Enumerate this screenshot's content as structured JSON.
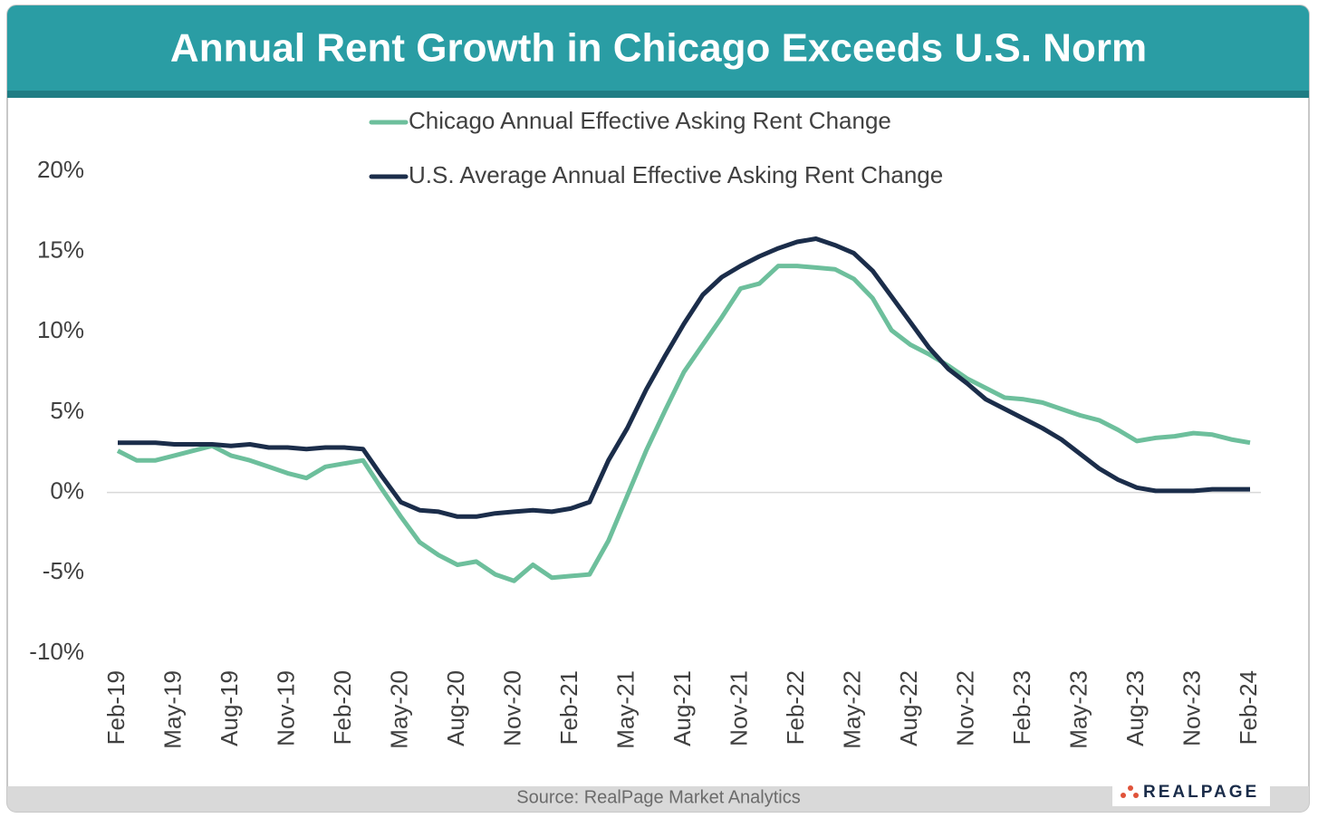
{
  "chart_data": {
    "type": "line",
    "title": "Annual Rent Growth in Chicago Exceeds U.S. Norm",
    "source": "Source: RealPage Market Analytics",
    "logo": "REALPAGE",
    "legend": "top",
    "grid": false,
    "categories": [
      "Feb-19",
      null,
      null,
      "May-19",
      null,
      null,
      "Aug-19",
      null,
      null,
      "Nov-19",
      null,
      null,
      "Feb-20",
      null,
      null,
      "May-20",
      null,
      null,
      "Aug-20",
      null,
      null,
      "Nov-20",
      null,
      null,
      "Feb-21",
      null,
      null,
      "May-21",
      null,
      null,
      "Aug-21",
      null,
      null,
      "Nov-21",
      null,
      null,
      "Feb-22",
      null,
      null,
      "May-22",
      null,
      null,
      "Aug-22",
      null,
      null,
      "Nov-22",
      null,
      null,
      "Feb-23",
      null,
      null,
      "May-23",
      null,
      null,
      "Aug-23",
      null,
      null,
      "Nov-23",
      null,
      null,
      "Feb-24"
    ],
    "series": [
      {
        "name": "Chicago Annual Effective Asking Rent Change",
        "color": "#6dbf9c",
        "values": [
          2.6,
          2.0,
          2.0,
          2.3,
          2.6,
          2.9,
          2.3,
          2.0,
          1.6,
          1.2,
          0.9,
          1.6,
          1.8,
          2.0,
          0.2,
          -1.5,
          -3.1,
          -3.9,
          -4.5,
          -4.3,
          -5.1,
          -5.5,
          -4.5,
          -5.3,
          -5.2,
          -5.1,
          -3.0,
          -0.2,
          2.6,
          5.1,
          7.5,
          9.2,
          10.9,
          12.7,
          13.0,
          14.1,
          14.1,
          14.0,
          13.9,
          13.3,
          12.1,
          10.1,
          9.2,
          8.6,
          7.9,
          7.1,
          6.5,
          5.9,
          5.8,
          5.6,
          5.2,
          4.8,
          4.5,
          3.9,
          3.2,
          3.4,
          3.5,
          3.7,
          3.6,
          3.3,
          3.1
        ]
      },
      {
        "name": "U.S. Average Annual Effective Asking Rent Change",
        "color": "#1b2d4a",
        "values": [
          3.1,
          3.1,
          3.1,
          3.0,
          3.0,
          3.0,
          2.9,
          3.0,
          2.8,
          2.8,
          2.7,
          2.8,
          2.8,
          2.7,
          1.0,
          -0.6,
          -1.1,
          -1.2,
          -1.5,
          -1.5,
          -1.3,
          -1.2,
          -1.1,
          -1.2,
          -1.0,
          -0.6,
          2.0,
          4.0,
          6.4,
          8.5,
          10.5,
          12.3,
          13.4,
          14.1,
          14.7,
          15.2,
          15.6,
          15.8,
          15.4,
          14.9,
          13.8,
          12.2,
          10.6,
          9.0,
          7.7,
          6.8,
          5.8,
          5.2,
          4.6,
          4.0,
          3.3,
          2.4,
          1.5,
          0.8,
          0.3,
          0.1,
          0.1,
          0.1,
          0.2,
          0.2,
          0.2
        ]
      }
    ],
    "ylim": [
      -10,
      20
    ],
    "yticks": [
      {
        "value": -10,
        "label": "-10%"
      },
      {
        "value": -5,
        "label": "-5%"
      },
      {
        "value": 0,
        "label": "0%"
      },
      {
        "value": 5,
        "label": "5%"
      },
      {
        "value": 10,
        "label": "10%"
      },
      {
        "value": 15,
        "label": "15%"
      },
      {
        "value": 20,
        "label": "20%"
      }
    ]
  }
}
